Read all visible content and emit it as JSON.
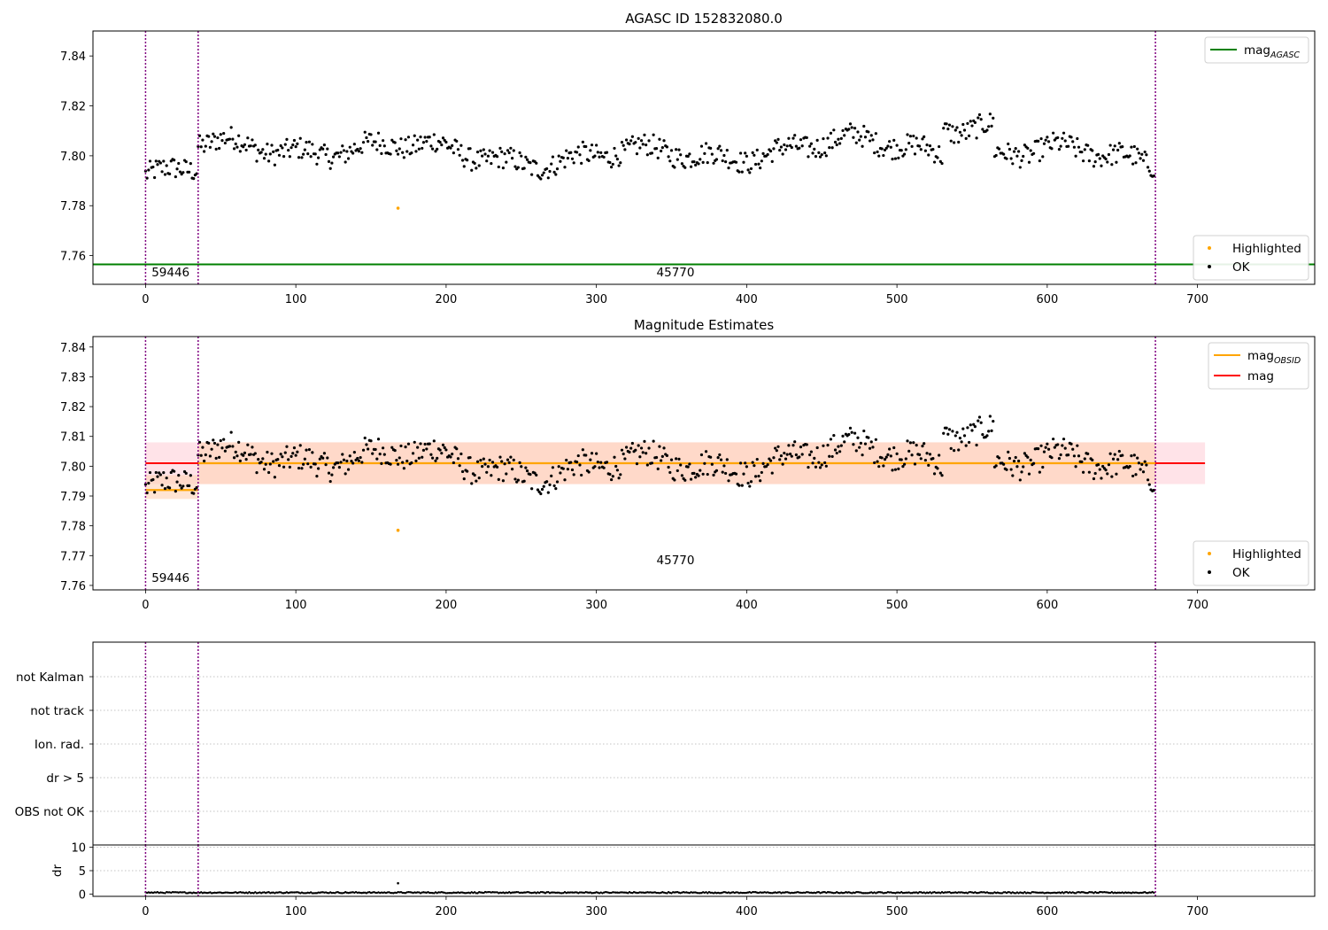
{
  "chart_data": [
    {
      "type": "scatter",
      "title": "AGASC ID 152832080.0",
      "xlim": [
        -35,
        778
      ],
      "ylim": [
        7.7485,
        7.85
      ],
      "xticks": [
        0,
        100,
        200,
        300,
        400,
        500,
        600,
        700
      ],
      "yticks": [
        7.76,
        7.78,
        7.8,
        7.82,
        7.84
      ],
      "ytick_labels": [
        "7.76",
        "7.78",
        "7.80",
        "7.82",
        "7.84"
      ],
      "vlines": [
        0,
        35,
        672
      ],
      "obsid_labels": [
        {
          "x": 4,
          "text": "59446"
        },
        {
          "x": 340,
          "text": "45770"
        }
      ],
      "mag_agasc": 7.7565,
      "highlighted": [
        {
          "x": 168,
          "y": 7.779
        }
      ],
      "legend_lines": [
        {
          "name": "mag",
          "sub": "AGASC",
          "color": "#008000"
        }
      ],
      "legend_points": [
        {
          "name": "Highlighted",
          "color": "#ffa500"
        },
        {
          "name": "OK",
          "color": "#000000"
        }
      ]
    },
    {
      "type": "scatter",
      "title": "Magnitude Estimates",
      "xlim": [
        -35,
        778
      ],
      "ylim": [
        7.7585,
        7.8435
      ],
      "xticks": [
        0,
        100,
        200,
        300,
        400,
        500,
        600,
        700
      ],
      "yticks": [
        7.76,
        7.77,
        7.78,
        7.79,
        7.8,
        7.81,
        7.82,
        7.83,
        7.84
      ],
      "ytick_labels": [
        "7.76",
        "7.77",
        "7.78",
        "7.79",
        "7.80",
        "7.81",
        "7.82",
        "7.83",
        "7.84"
      ],
      "vlines": [
        0,
        35,
        672
      ],
      "obsid_labels": [
        {
          "x": 4,
          "text": "59446"
        },
        {
          "x": 340,
          "text": "45770"
        }
      ],
      "mag": 7.801,
      "mag_band": [
        7.794,
        7.808
      ],
      "mag_extent": [
        0,
        705
      ],
      "obsid_segments": [
        {
          "x0": 0,
          "x1": 35,
          "mag": 7.792,
          "band": [
            7.789,
            7.797
          ]
        },
        {
          "x0": 35,
          "x1": 672,
          "mag": 7.801,
          "band": [
            7.794,
            7.808
          ]
        }
      ],
      "highlighted": [
        {
          "x": 168,
          "y": 7.7785
        }
      ],
      "legend_lines": [
        {
          "name": "mag",
          "sub": "OBSID",
          "color": "#ffa500"
        },
        {
          "name": "mag",
          "sub": "",
          "color": "#ff0000"
        }
      ],
      "legend_points": [
        {
          "name": "Highlighted",
          "color": "#ffa500"
        },
        {
          "name": "OK",
          "color": "#000000"
        }
      ]
    },
    {
      "type": "scatter",
      "categories": [
        "OBS not OK",
        "dr > 5",
        "Ion. rad.",
        "not track",
        "not Kalman"
      ],
      "xlim": [
        -35,
        778
      ],
      "vlines": [
        0,
        35,
        672
      ],
      "flag_points": []
    },
    {
      "type": "scatter",
      "ylabel": "dr",
      "xlim": [
        -35,
        778
      ],
      "ylim": [
        -0.5,
        10.5
      ],
      "xticks": [
        0,
        100,
        200,
        300,
        400,
        500,
        600,
        700
      ],
      "yticks": [
        0,
        5,
        10
      ],
      "vlines": [
        0,
        35,
        672
      ],
      "dr_mean": 0.3,
      "dr_outliers": [
        {
          "x": 168,
          "y": 2.3
        }
      ]
    }
  ],
  "series_model": {
    "n_points": 672,
    "segments": [
      {
        "x0": 0,
        "x1": 35,
        "base": 7.7925,
        "amp": 0.004
      },
      {
        "x0": 35,
        "x1": 672,
        "base": 7.8015,
        "amp": 0.006
      }
    ],
    "note_free": true
  },
  "colors": {
    "vline": "#800080",
    "points": "#000000",
    "agasc": "#008000",
    "mag": "#ff0000",
    "obsid": "#ffa500",
    "mag_band": "#ffc0cb",
    "obsid_band": "#ffd2b4"
  }
}
